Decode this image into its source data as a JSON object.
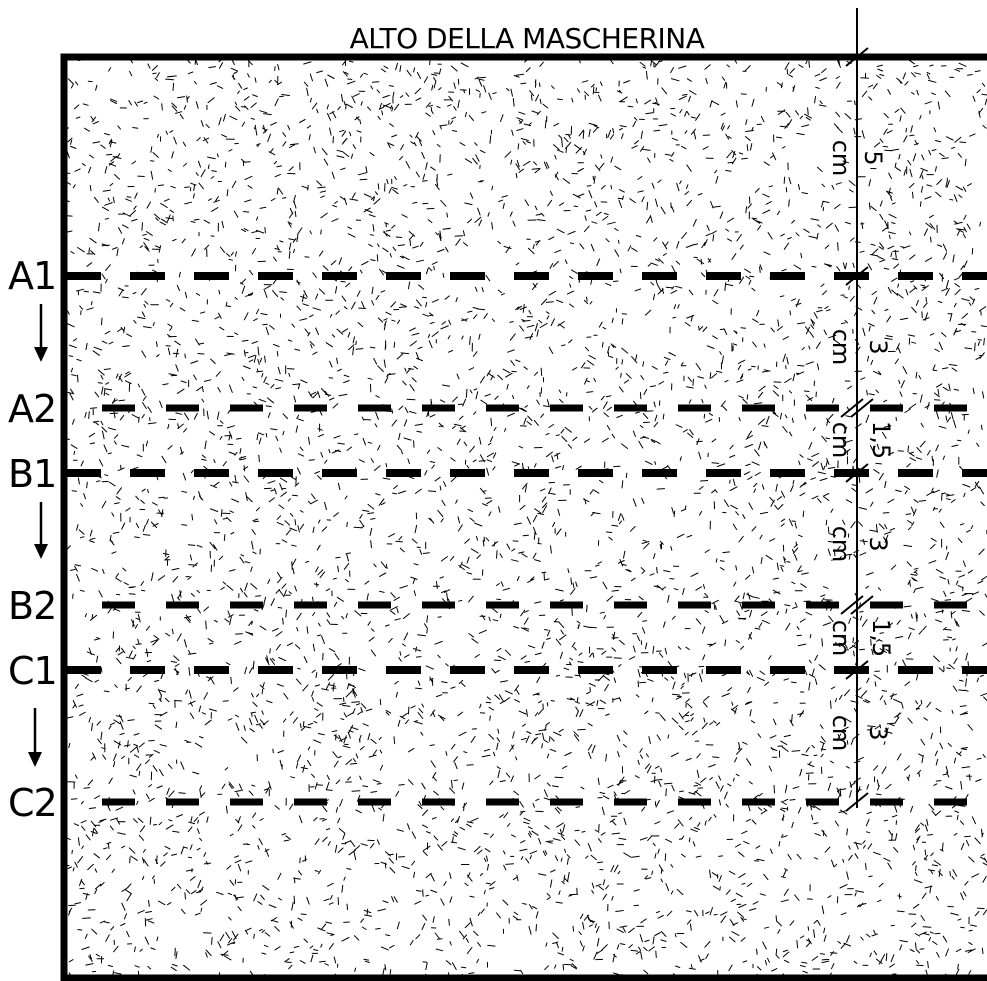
{
  "title": "ALTO DELLA MASCHERINA",
  "colors": {
    "ink": "#000000",
    "paper": "#ffffff"
  },
  "fabric_pattern": "speckle-dashes",
  "lines": [
    {
      "id": "A1",
      "label": "A1",
      "style": "fold-dashed"
    },
    {
      "id": "A2",
      "label": "A2",
      "style": "thin-dashed"
    },
    {
      "id": "B1",
      "label": "B1",
      "style": "fold-dashed"
    },
    {
      "id": "B2",
      "label": "B2",
      "style": "thin-dashed"
    },
    {
      "id": "C1",
      "label": "C1",
      "style": "fold-dashed"
    },
    {
      "id": "C2",
      "label": "C2",
      "style": "thin-dashed"
    }
  ],
  "fold_arrows": [
    {
      "from": "A1",
      "to": "A2",
      "icon": "arrow-down-icon"
    },
    {
      "from": "B1",
      "to": "B2",
      "icon": "arrow-down-icon"
    },
    {
      "from": "C1",
      "to": "C2",
      "icon": "arrow-down-icon"
    }
  ],
  "measurements": [
    {
      "id": "m1",
      "value": "5",
      "unit": "cm"
    },
    {
      "id": "m2",
      "value": "3",
      "unit": "cm"
    },
    {
      "id": "m3",
      "value": "1,5",
      "unit": "cm"
    },
    {
      "id": "m4",
      "value": "3",
      "unit": "cm"
    },
    {
      "id": "m5",
      "value": "1,5",
      "unit": "cm"
    },
    {
      "id": "m6",
      "value": "3",
      "unit": "cm"
    }
  ]
}
